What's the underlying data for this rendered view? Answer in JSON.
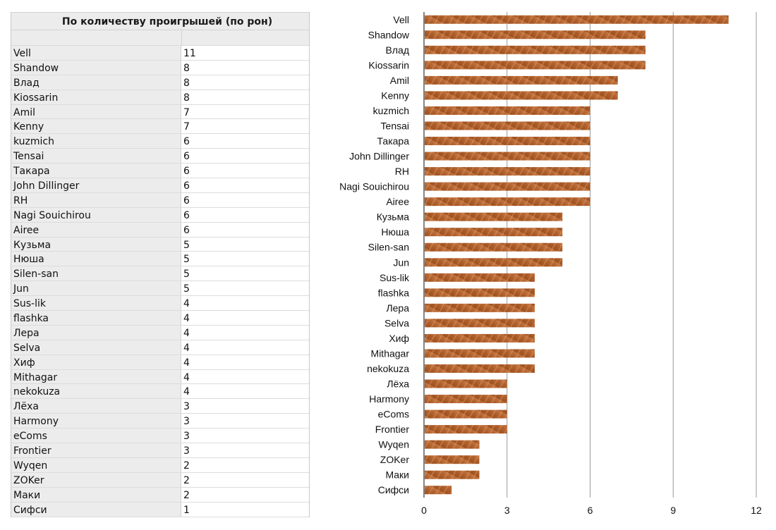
{
  "table": {
    "title": "По количеству проигрышей (по рон)",
    "rows": [
      {
        "name": "Vell",
        "value": "11"
      },
      {
        "name": "Shandow",
        "value": "8"
      },
      {
        "name": "Влад",
        "value": "8"
      },
      {
        "name": "Kiossarin",
        "value": "8"
      },
      {
        "name": "Amil",
        "value": "7"
      },
      {
        "name": "Kenny",
        "value": "7"
      },
      {
        "name": "kuzmich",
        "value": "6"
      },
      {
        "name": "Tensai",
        "value": "6"
      },
      {
        "name": "Такара",
        "value": "6"
      },
      {
        "name": "John Dillinger",
        "value": "6"
      },
      {
        "name": "RH",
        "value": "6"
      },
      {
        "name": "Nagi Souichirou",
        "value": "6"
      },
      {
        "name": "Airee",
        "value": "6"
      },
      {
        "name": "Кузьма",
        "value": "5"
      },
      {
        "name": "Нюша",
        "value": "5"
      },
      {
        "name": "Silen-san",
        "value": "5"
      },
      {
        "name": "Jun",
        "value": "5"
      },
      {
        "name": "Sus-lik",
        "value": "4"
      },
      {
        "name": "flashka",
        "value": "4"
      },
      {
        "name": "Лера",
        "value": "4"
      },
      {
        "name": "Selva",
        "value": "4"
      },
      {
        "name": "Хиф",
        "value": "4"
      },
      {
        "name": "Mithagar",
        "value": "4"
      },
      {
        "name": "nekokuza",
        "value": "4"
      },
      {
        "name": "Лёха",
        "value": "3"
      },
      {
        "name": "Harmony",
        "value": "3"
      },
      {
        "name": "eComs",
        "value": "3"
      },
      {
        "name": "Frontier",
        "value": "3"
      },
      {
        "name": "Wyqen",
        "value": "2"
      },
      {
        "name": "ZOKer",
        "value": "2"
      },
      {
        "name": "Маки",
        "value": "2"
      },
      {
        "name": "Сифси",
        "value": "1"
      }
    ]
  },
  "chart_data": {
    "type": "bar",
    "orientation": "horizontal",
    "categories": [
      "Vell",
      "Shandow",
      "Влад",
      "Kiossarin",
      "Amil",
      "Kenny",
      "kuzmich",
      "Tensai",
      "Такара",
      "John Dillinger",
      "RH",
      "Nagi Souichirou",
      "Airee",
      "Кузьма",
      "Нюша",
      "Silen-san",
      "Jun",
      "Sus-lik",
      "flashka",
      "Лера",
      "Selva",
      "Хиф",
      "Mithagar",
      "nekokuza",
      "Лёха",
      "Harmony",
      "eComs",
      "Frontier",
      "Wyqen",
      "ZOKer",
      "Маки",
      "Сифси"
    ],
    "values": [
      11,
      8,
      8,
      8,
      7,
      7,
      6,
      6,
      6,
      6,
      6,
      6,
      6,
      5,
      5,
      5,
      5,
      4,
      4,
      4,
      4,
      4,
      4,
      4,
      3,
      3,
      3,
      3,
      2,
      2,
      2,
      1
    ],
    "title": "",
    "xlabel": "",
    "ylabel": "",
    "xlim": [
      0,
      12
    ],
    "xticks": [
      "0",
      "3",
      "6",
      "9",
      "12"
    ],
    "grid": "vertical",
    "colors": {
      "bar": "#b5622e",
      "bar_light": "#cf8a55",
      "grid": "#9a9a9a"
    }
  }
}
